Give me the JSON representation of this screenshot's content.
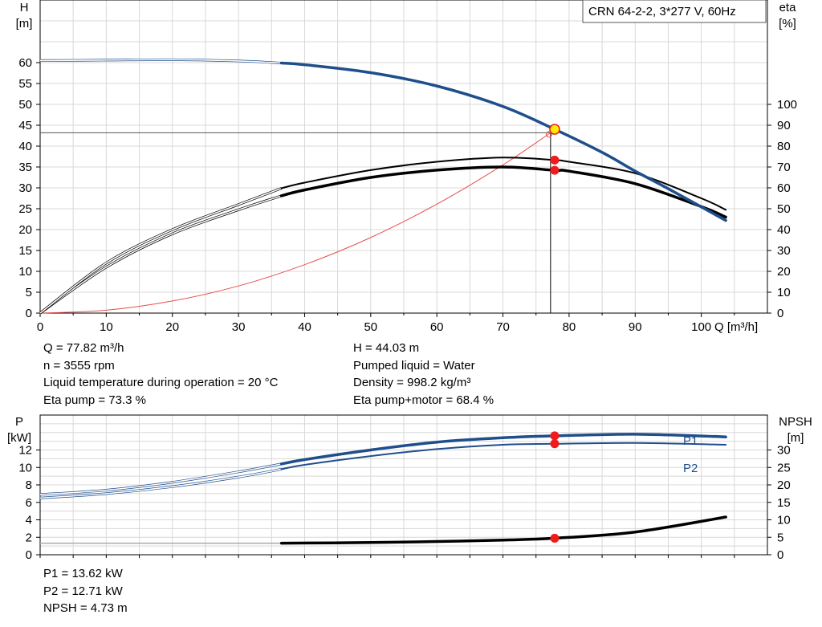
{
  "chart_data": [
    {
      "type": "line",
      "title": "CRN 64-2-2, 3*277 V, 60Hz",
      "xlabel": "Q [m³/h]",
      "ylabel": "H\n[m]",
      "y2label": "eta\n[%]",
      "xlim": [
        0,
        110
      ],
      "ylim": [
        0,
        75
      ],
      "y2lim": [
        0,
        150
      ],
      "x_ticks": [
        0,
        10,
        20,
        30,
        40,
        50,
        60,
        70,
        80,
        90,
        100
      ],
      "y_ticks": [
        0,
        5,
        10,
        15,
        20,
        25,
        30,
        35,
        40,
        45,
        50,
        55,
        60
      ],
      "y2_ticks": [
        0,
        10,
        20,
        30,
        40,
        50,
        60,
        70,
        80,
        90,
        100
      ],
      "grid": true,
      "series": [
        {
          "key": "H",
          "axis": "left",
          "color": "#1f4e8c",
          "x": [
            0,
            10,
            20,
            30,
            36.5,
            40,
            50,
            60,
            70,
            77.82,
            85,
            90,
            95,
            103.7
          ],
          "y": [
            60.5,
            60.6,
            60.7,
            60.4,
            59.9,
            59.5,
            57.6,
            54.4,
            49.5,
            44.03,
            38.5,
            34.0,
            29.8,
            22.2
          ]
        },
        {
          "key": "eta_pump",
          "axis": "right",
          "color": "#000000",
          "x": [
            0,
            10,
            20,
            30,
            36.5,
            40,
            50,
            60,
            70,
            77.82,
            80,
            90,
            100,
            103.7
          ],
          "y": [
            0,
            24,
            40,
            52,
            59.8,
            62.5,
            68.5,
            72.5,
            74.5,
            73.3,
            72.5,
            67,
            55,
            49.5
          ]
        },
        {
          "key": "eta_total",
          "axis": "right",
          "color": "#000000",
          "x": [
            0,
            10,
            20,
            30,
            36.5,
            40,
            50,
            60,
            70,
            77.82,
            80,
            90,
            100,
            103.7
          ],
          "y": [
            0,
            22,
            38,
            49.5,
            56.2,
            59,
            65,
            68.5,
            70,
            68.4,
            68,
            62,
            51,
            46
          ]
        },
        {
          "key": "system",
          "axis": "left",
          "color": "#e85050",
          "x": [
            0,
            10,
            20,
            30,
            40,
            50,
            60,
            70,
            77.2
          ],
          "y": [
            0,
            0.7,
            2.9,
            6.5,
            11.6,
            18.1,
            26.1,
            35.5,
            43.2
          ]
        }
      ],
      "operating_point": {
        "x": 77.82,
        "y": 44.03,
        "eta_pump": 73.3,
        "eta_total": 68.4
      },
      "reference_line": {
        "x": 77.2,
        "y": 43.2
      }
    },
    {
      "type": "line",
      "xlabel": "",
      "ylabel": "P\n[kW]",
      "y2label": "NPSH\n[m]",
      "xlim": [
        0,
        110
      ],
      "ylim": [
        0,
        16
      ],
      "y2lim": [
        0,
        40
      ],
      "y_ticks": [
        0,
        2,
        4,
        6,
        8,
        10,
        12
      ],
      "y2_ticks": [
        0,
        5,
        10,
        15,
        20,
        25,
        30
      ],
      "grid": true,
      "series": [
        {
          "key": "P1",
          "name": "P1",
          "axis": "left",
          "color": "#1f4e8c",
          "x": [
            0,
            10,
            20,
            30,
            36.5,
            40,
            50,
            60,
            70,
            77.82,
            90,
            103.7
          ],
          "y": [
            6.9,
            7.4,
            8.3,
            9.5,
            10.4,
            10.9,
            12.0,
            12.9,
            13.4,
            13.62,
            13.8,
            13.5
          ]
        },
        {
          "key": "P2",
          "name": "P2",
          "axis": "left",
          "color": "#1f4e8c",
          "x": [
            0,
            10,
            20,
            30,
            36.5,
            40,
            50,
            60,
            70,
            77.82,
            90,
            103.7
          ],
          "y": [
            6.5,
            7.0,
            7.8,
            8.9,
            9.8,
            10.3,
            11.3,
            12.1,
            12.6,
            12.71,
            12.8,
            12.6
          ]
        },
        {
          "key": "NPSH",
          "axis": "right",
          "color": "#000000",
          "x": [
            0,
            10,
            20,
            30,
            36.5,
            50,
            60,
            70,
            77.82,
            90,
            103.7
          ],
          "y": [
            3.3,
            3.3,
            3.3,
            3.3,
            3.3,
            3.5,
            3.8,
            4.2,
            4.73,
            6.5,
            10.8
          ]
        }
      ],
      "operating_points": [
        {
          "axis": "left",
          "x": 77.82,
          "y": 13.62
        },
        {
          "axis": "left",
          "x": 77.82,
          "y": 12.71
        },
        {
          "axis": "right",
          "x": 77.82,
          "y": 4.73
        }
      ]
    }
  ],
  "info_top_left": [
    "Q = 77.82 m³/h",
    "n = 3555 rpm",
    "Liquid temperature during operation = 20 °C",
    "Eta pump = 73.3 %"
  ],
  "info_top_right": [
    "H = 44.03 m",
    "Pumped liquid = Water",
    "Density = 998.2 kg/m³",
    "Eta pump+motor = 68.4 %"
  ],
  "info_bottom": [
    "P1 = 13.62 kW",
    "P2 = 12.71 kW",
    "NPSH = 4.73 m"
  ],
  "colors": {
    "pump_curve": "#1f4e8c",
    "operating_point": "#ee1c1c",
    "duty_point": "#ffee00",
    "system_curve": "#e85050",
    "grid": "#d8d8d8"
  }
}
